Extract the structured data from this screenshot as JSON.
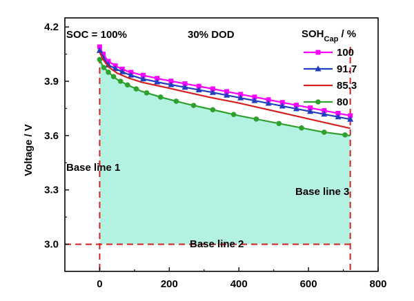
{
  "chart_data": {
    "type": "line",
    "title": "",
    "xlabel": "",
    "ylabel": "Voltage / V",
    "xlim": [
      -100,
      800
    ],
    "ylim": [
      2.85,
      4.25
    ],
    "x_ticks": [
      0,
      200,
      400,
      600,
      800
    ],
    "x_tick_labels": [
      "0",
      "200",
      "400",
      "600",
      "800"
    ],
    "y_ticks": [
      3.0,
      3.3,
      3.6,
      3.9,
      4.2
    ],
    "y_tick_labels": [
      "3.0",
      "3.3",
      "3.6",
      "3.9",
      "4.2"
    ],
    "grid": false,
    "legend": {
      "title_main": "SOH",
      "title_sub": "Cap",
      "title_suffix": " / %",
      "placement": "top-right"
    },
    "x": [
      0,
      10,
      25,
      50,
      80,
      120,
      180,
      250,
      320,
      400,
      480,
      560,
      640,
      720
    ],
    "series": [
      {
        "name": "100",
        "color": "#ff00ff",
        "marker": "square",
        "values": [
          4.09,
          4.05,
          4.01,
          3.98,
          3.955,
          3.935,
          3.91,
          3.885,
          3.86,
          3.83,
          3.8,
          3.77,
          3.74,
          3.71
        ],
        "marker_x": [
          0,
          10,
          25,
          45,
          65,
          90,
          125,
          165,
          205,
          245,
          285,
          325,
          365,
          405,
          445,
          485,
          525,
          565,
          605,
          645,
          685,
          720
        ]
      },
      {
        "name": "91.7",
        "color": "#1f3fbf",
        "marker": "triangle",
        "values": [
          4.07,
          4.03,
          3.99,
          3.965,
          3.94,
          3.915,
          3.89,
          3.865,
          3.84,
          3.81,
          3.78,
          3.75,
          3.72,
          3.69
        ],
        "marker_x": [
          0,
          10,
          25,
          45,
          65,
          90,
          125,
          165,
          205,
          245,
          285,
          325,
          365,
          405,
          445,
          485,
          525,
          565,
          605,
          645,
          685,
          720
        ]
      },
      {
        "name": "85.3",
        "color": "#d42020",
        "marker": "none",
        "values": [
          4.06,
          4.02,
          3.98,
          3.945,
          3.92,
          3.895,
          3.87,
          3.84,
          3.81,
          3.78,
          3.745,
          3.71,
          3.675,
          3.64
        ]
      },
      {
        "name": "80",
        "color": "#2ea02e",
        "marker": "circle",
        "values": [
          4.02,
          3.98,
          3.95,
          3.91,
          3.88,
          3.845,
          3.81,
          3.775,
          3.745,
          3.71,
          3.68,
          3.65,
          3.62,
          3.6
        ],
        "marker_x": [
          0,
          12,
          25,
          40,
          60,
          80,
          105,
          135,
          175,
          220,
          270,
          325,
          385,
          450,
          515,
          580,
          645,
          705
        ]
      }
    ],
    "fill": {
      "color": "#b3f2e0",
      "below_series": "80",
      "x_range": [
        0,
        720
      ],
      "baseline": 3.0
    },
    "reference_lines": {
      "color": "#d42020",
      "vertical_x": [
        0,
        720
      ],
      "horizontal_y": 3.0
    },
    "annotations": {
      "soc": "SOC = 100%",
      "dod": "30% DOD",
      "base1": "Base line 1",
      "base2": "Base line 2",
      "base3": "Base line 3"
    }
  }
}
